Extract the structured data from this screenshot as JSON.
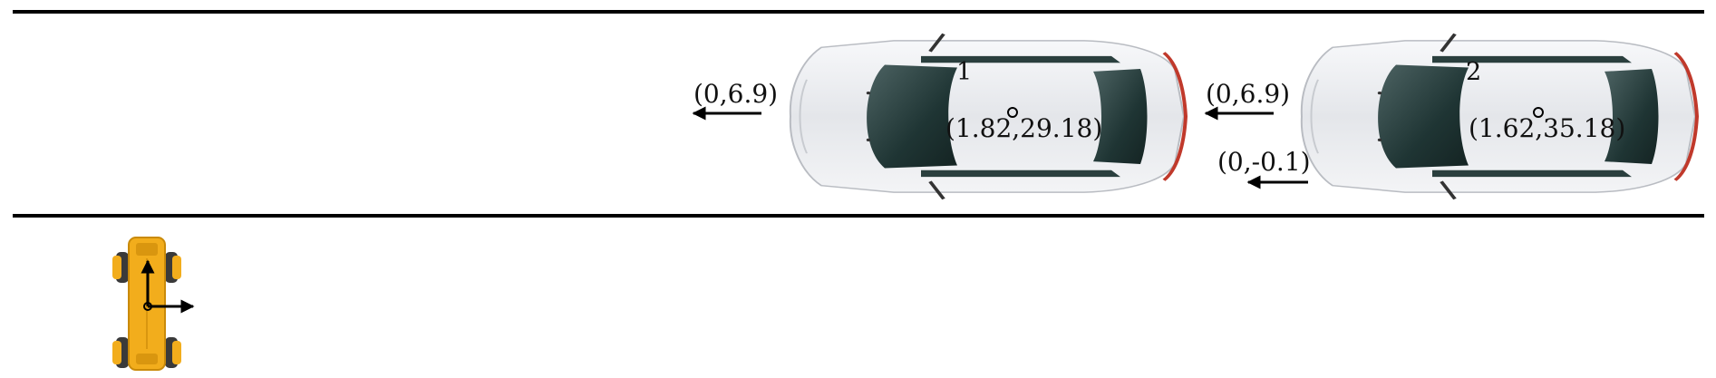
{
  "lane": {
    "line_color": "#000000"
  },
  "cars": [
    {
      "id_label": "1",
      "position_label": "(1.82,29.18)",
      "velocity_label": "(0,6.9)",
      "body_color": "#e9ebee",
      "glass_color": "#1f3534"
    },
    {
      "id_label": "2",
      "position_label": "(1.62,35.18)",
      "velocity_label": "(0,6.9)",
      "acceleration_label": "(0,-0.1)",
      "body_color": "#e9ebee",
      "glass_color": "#1f3534"
    }
  ],
  "robot": {
    "body_color": "#f2ad1c",
    "joint_color": "#3a3a3a",
    "icon": "quadruped-robot-top-view"
  }
}
